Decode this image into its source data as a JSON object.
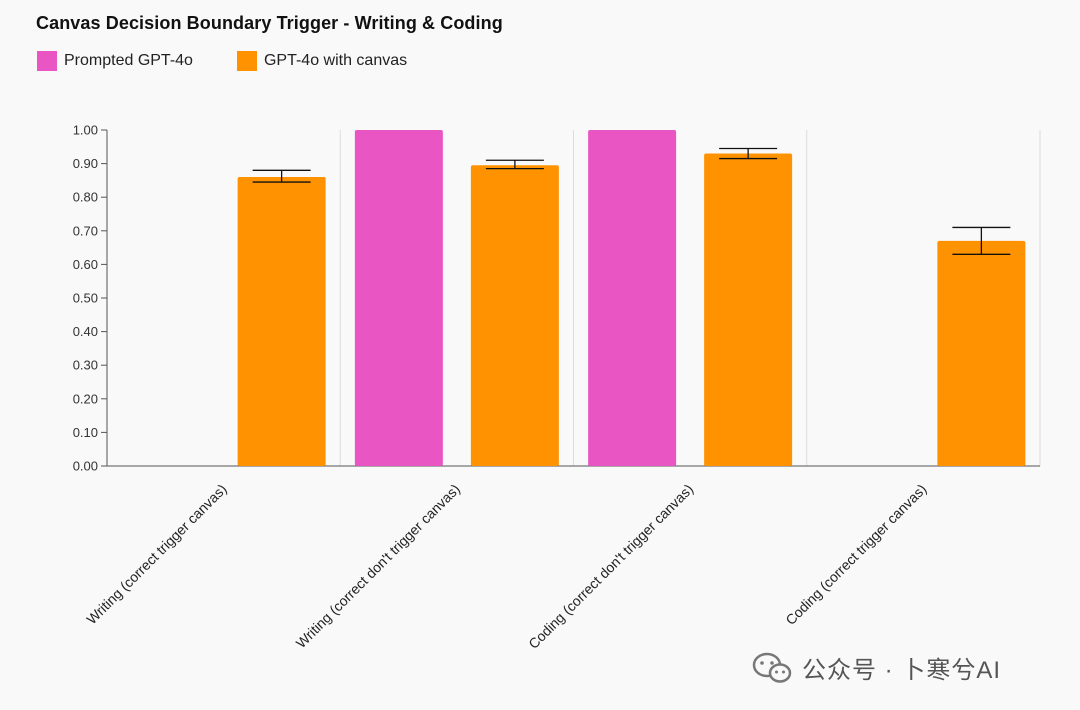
{
  "chart_data": {
    "type": "bar",
    "title": "Canvas Decision Boundary Trigger - Writing & Coding",
    "categories": [
      "Writing (correct trigger canvas)",
      "Writing (correct don't trigger canvas)",
      "Coding (correct don't trigger canvas)",
      "Coding (correct trigger canvas)"
    ],
    "series": [
      {
        "name": "Prompted GPT-4o",
        "color": "#ea55c4",
        "values": [
          null,
          1.0,
          1.0,
          null
        ]
      },
      {
        "name": "GPT-4o with canvas",
        "color": "#ff9200",
        "values": [
          0.86,
          0.895,
          0.93,
          0.67
        ],
        "error_low": [
          0.845,
          0.885,
          0.915,
          0.63
        ],
        "error_high": [
          0.88,
          0.91,
          0.945,
          0.71
        ]
      }
    ],
    "ylim": [
      0,
      1
    ],
    "yticks": [
      "0.00",
      "0.10",
      "0.20",
      "0.30",
      "0.40",
      "0.50",
      "0.60",
      "0.70",
      "0.80",
      "0.90",
      "1.00"
    ],
    "xlabel": "",
    "ylabel": "",
    "legend_position": "top-left",
    "grid": "vertical separators between categories"
  },
  "watermark": {
    "text": "公众号 · 卜寒兮AI",
    "icon": "wechat-icon"
  }
}
